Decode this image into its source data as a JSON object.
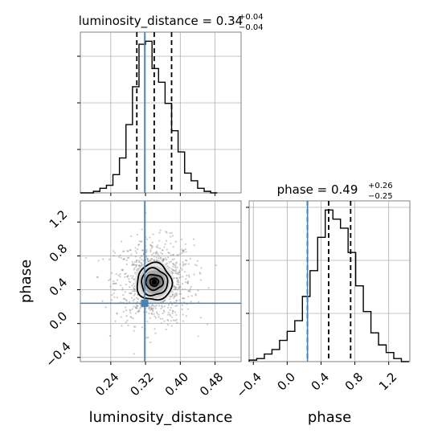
{
  "chart_data": [
    {
      "panel": "luminosity_distance-marginal",
      "type": "step-histogram",
      "title_main": "luminosity_distance = 0.34",
      "title_sup": "+0.04",
      "title_sub": "−0.04",
      "xlim": [
        0.17,
        0.54
      ],
      "grid": true,
      "bins": [
        0.17,
        0.185,
        0.2,
        0.215,
        0.23,
        0.245,
        0.26,
        0.275,
        0.29,
        0.305,
        0.32,
        0.335,
        0.35,
        0.365,
        0.38,
        0.395,
        0.41,
        0.425,
        0.44,
        0.455,
        0.47,
        0.485
      ],
      "counts": [
        0,
        0,
        1,
        3,
        5,
        12,
        23,
        45,
        70,
        98,
        100,
        82,
        73,
        59,
        41,
        27,
        13,
        8,
        3,
        1,
        0
      ],
      "quantiles": [
        0.3,
        0.34,
        0.38
      ],
      "truth": 0.318
    },
    {
      "panel": "phase-marginal",
      "type": "step-histogram",
      "title_main": "phase = 0.49",
      "title_sup": "+0.26",
      "title_sub": "−0.25",
      "xlabel": "phase",
      "xticks": [
        "−0.4",
        "0.0",
        "0.4",
        "0.8",
        "1.2"
      ],
      "xtick_values": [
        -0.4,
        0.0,
        0.4,
        0.8,
        1.2
      ],
      "xlim": [
        -0.45,
        1.45
      ],
      "grid": true,
      "bins": [
        -0.45,
        -0.36,
        -0.27,
        -0.18,
        -0.09,
        0.0,
        0.09,
        0.18,
        0.27,
        0.36,
        0.45,
        0.54,
        0.63,
        0.72,
        0.81,
        0.9,
        0.99,
        1.08,
        1.17,
        1.26,
        1.35,
        1.44
      ],
      "counts": [
        1,
        2,
        5,
        8,
        14,
        20,
        27,
        43,
        60,
        82,
        100,
        94,
        88,
        72,
        50,
        33,
        19,
        11,
        6,
        2,
        0
      ],
      "quantiles": [
        0.24,
        0.49,
        0.75
      ],
      "truth": 0.24
    },
    {
      "panel": "joint",
      "type": "2d-density",
      "xlabel": "luminosity_distance",
      "ylabel": "phase",
      "xticks": [
        "0.24",
        "0.32",
        "0.40",
        "0.48"
      ],
      "xtick_values": [
        0.24,
        0.32,
        0.4,
        0.48
      ],
      "yticks": [
        "−0.4",
        "0.0",
        "0.4",
        "0.8",
        "1.2"
      ],
      "ytick_values": [
        -0.4,
        0.0,
        0.4,
        0.8,
        1.2
      ],
      "xlim": [
        0.17,
        0.54
      ],
      "ylim": [
        -0.45,
        1.45
      ],
      "grid": true,
      "center": [
        0.34,
        0.49
      ],
      "contour_sigmas": [
        [
          0.01,
          0.045
        ],
        [
          0.02,
          0.09
        ],
        [
          0.03,
          0.16
        ],
        [
          0.04,
          0.22
        ]
      ],
      "truth": [
        0.318,
        0.24
      ]
    }
  ],
  "colors": {
    "truth": "#4682b4",
    "line": "#000000",
    "grid": "#b0b0b0",
    "frame": "#808080",
    "scatter": "#8c8c8c"
  }
}
